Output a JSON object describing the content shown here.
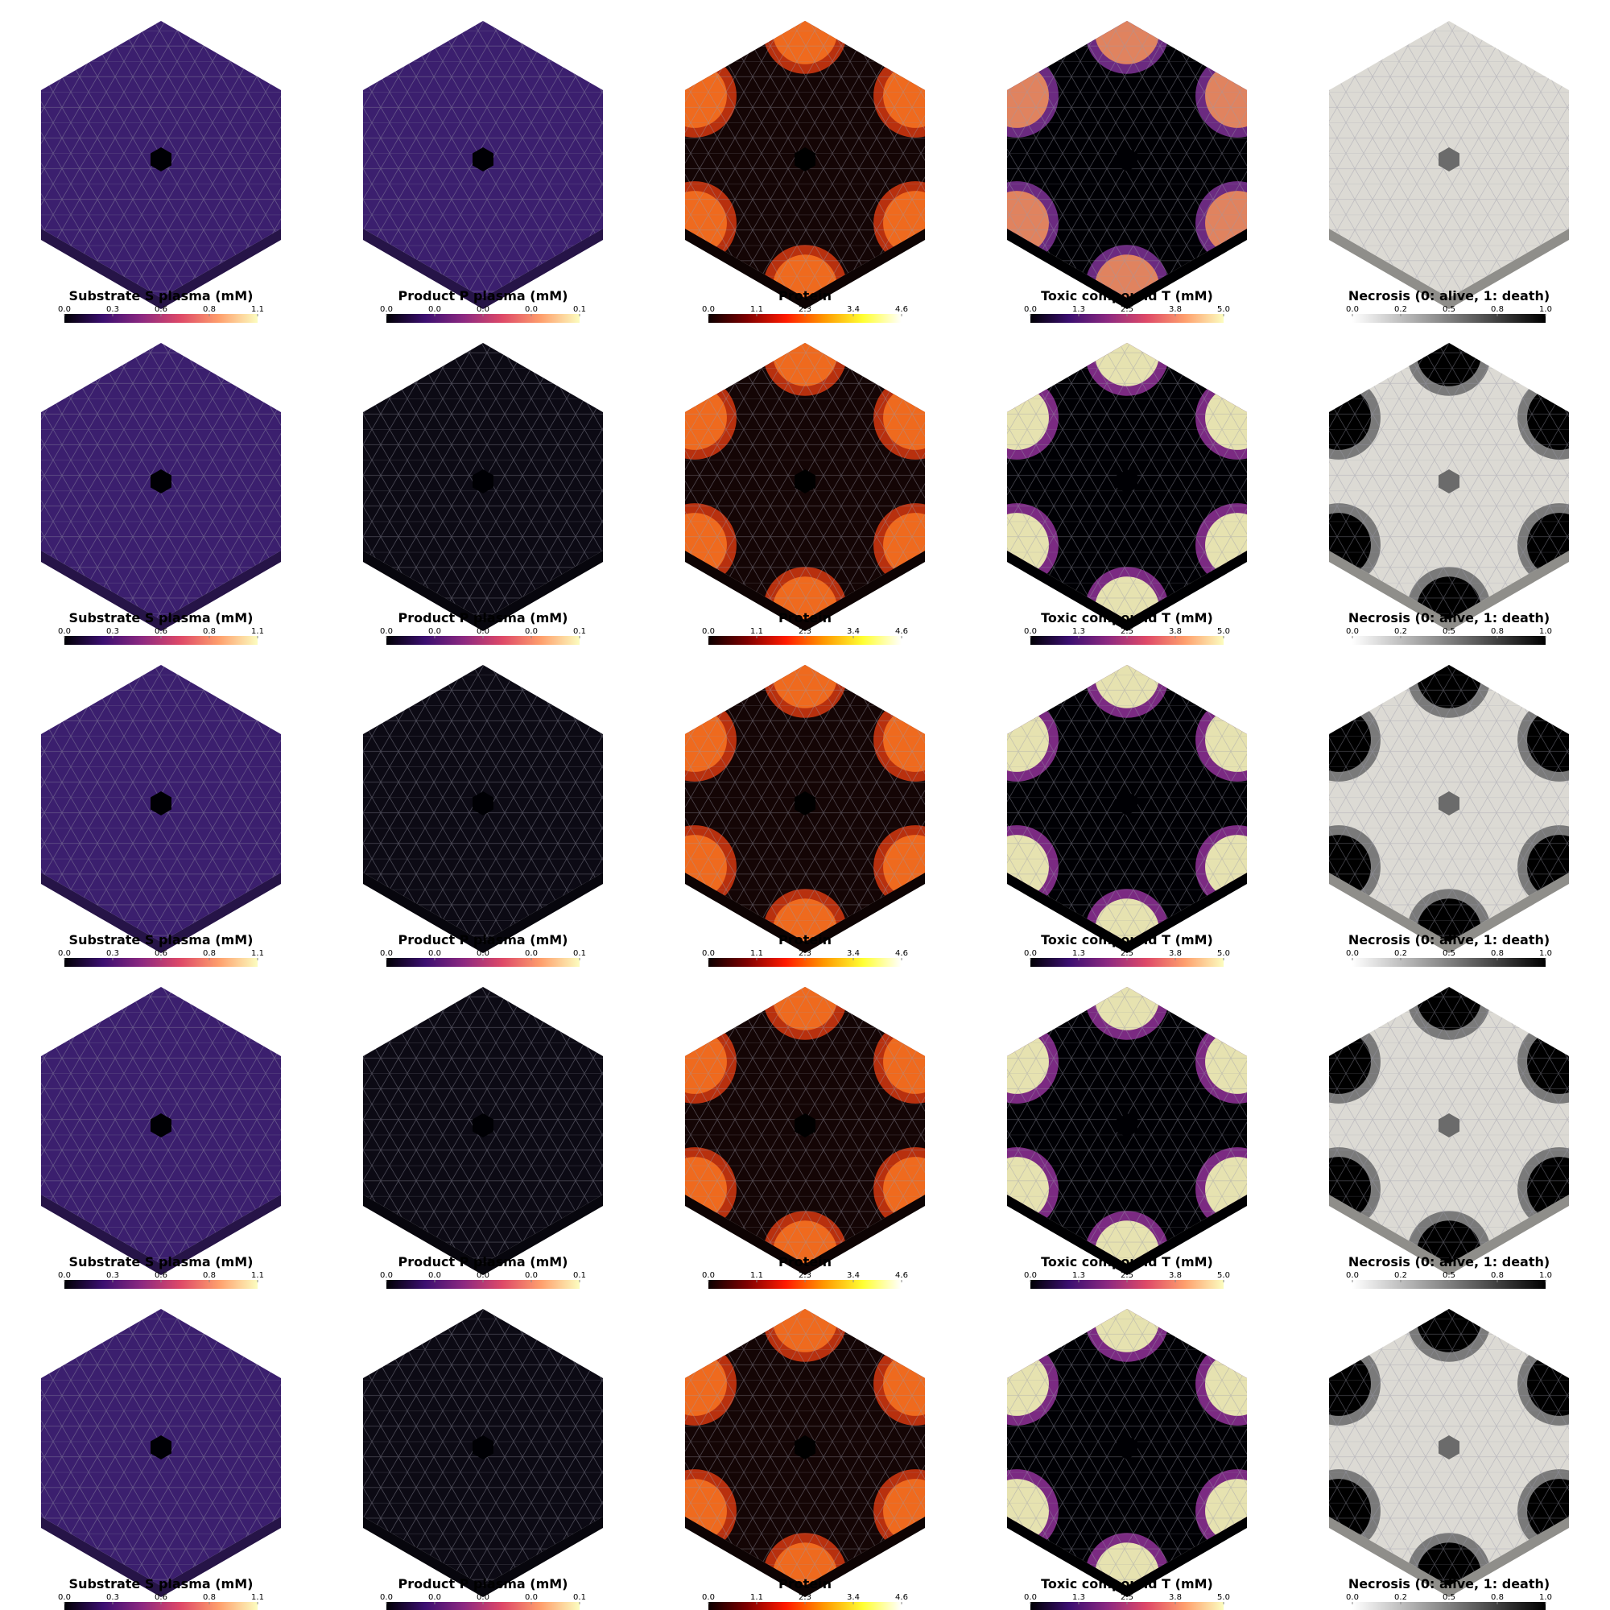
{
  "rows": [
    {
      "panels": [
        {
          "title": "Substrate S plasma (mM)",
          "lim": [
            0,
            1.1
          ],
          "ticks": [
            {
              "value": 0,
              "label": "0.0"
            },
            {
              "value": 0.275,
              "label": "0.3"
            },
            {
              "value": 0.55,
              "label": "0.6"
            },
            {
              "value": 0.825,
              "label": "0.8"
            },
            1.1
          ],
          "colors": [
            "#000004",
            "#3b0f70",
            "#8c2981",
            "#de4968",
            "#fe9f6d",
            "#fcfdbf"
          ],
          "fill": "#3b1f6e",
          "hole": "#000004",
          "spots": null
        },
        {
          "title": "Product P plasma (mM)",
          "lim": [
            0,
            0.06
          ],
          "ticks": [
            {
              "value": 0,
              "label": "0.0"
            },
            {
              "value": 0.015,
              "label": "0.0"
            },
            {
              "value": 0.03,
              "label": "0.0"
            },
            {
              "value": 0.045,
              "label": "0.0"
            },
            {
              "value": 0.06,
              "label": "0.1"
            }
          ],
          "colors": [
            "#000004",
            "#3b0f70",
            "#8c2981",
            "#de4968",
            "#fe9f6d",
            "#fcfdbf"
          ],
          "fill": "#3b1f6e",
          "hole": "#000004",
          "spots": null
        },
        {
          "title": "Protein",
          "lim": [
            0,
            4.6
          ],
          "ticks": [
            {
              "value": 0,
              "label": "0.0"
            },
            {
              "value": 1.15,
              "label": "1.1"
            },
            2.3,
            {
              "value": 3.45,
              "label": "3.4"
            },
            4.6
          ],
          "colors": [
            "#0b0000",
            "#7f0000",
            "#ff1a00",
            "#ff9900",
            "#ffff33",
            "#ffffff"
          ],
          "fill": "#140505",
          "hole": "#000000",
          "spots": [
            "#b8300e",
            "#ef6a1e"
          ]
        },
        {
          "title": "Toxic compound T (mM)",
          "lim": [
            0,
            5
          ],
          "ticks": [
            {
              "value": 0,
              "label": "0.0"
            },
            {
              "value": 1.25,
              "label": "1.3"
            },
            2.5,
            {
              "value": 3.75,
              "label": "3.8"
            },
            {
              "value": 5,
              "label": "5.0"
            }
          ],
          "colors": [
            "#000004",
            "#3b0f70",
            "#8c2981",
            "#de4968",
            "#fe9f6d",
            "#fcfdbf"
          ],
          "fill": "#000004",
          "hole": "#000004",
          "spots": [
            "#6b2a80",
            "#e0835f"
          ]
        },
        {
          "title": "Necrosis (0: alive, 1: death)",
          "lim": [
            0,
            1
          ],
          "ticks": [
            {
              "value": 0,
              "label": "0.0"
            },
            {
              "value": 0.25,
              "label": "0.2"
            },
            0.5,
            {
              "value": 0.75,
              "label": "0.8"
            },
            {
              "value": 1,
              "label": "1.0"
            }
          ],
          "colors": [
            "#ffffff",
            "#000000"
          ],
          "fill": "#dcdad4",
          "hole": "#6b6b6b",
          "spots": null
        }
      ]
    },
    {
      "panels": [
        {
          "title": "Substrate S plasma (mM)",
          "lim": [
            0,
            1.1
          ],
          "ticks": [
            {
              "value": 0,
              "label": "0.0"
            },
            {
              "value": 0.275,
              "label": "0.3"
            },
            {
              "value": 0.55,
              "label": "0.6"
            },
            {
              "value": 0.825,
              "label": "0.8"
            },
            1.1
          ],
          "colors": [
            "#000004",
            "#3b0f70",
            "#8c2981",
            "#de4968",
            "#fe9f6d",
            "#fcfdbf"
          ],
          "fill": "#3b1f6e",
          "hole": "#000004",
          "spots": null
        },
        {
          "title": "Product P plasma (mM)",
          "lim": [
            0,
            0.06
          ],
          "ticks": [
            {
              "value": 0,
              "label": "0.0"
            },
            {
              "value": 0.015,
              "label": "0.0"
            },
            {
              "value": 0.03,
              "label": "0.0"
            },
            {
              "value": 0.045,
              "label": "0.0"
            },
            {
              "value": 0.06,
              "label": "0.1"
            }
          ],
          "colors": [
            "#000004",
            "#3b0f70",
            "#8c2981",
            "#de4968",
            "#fe9f6d",
            "#fcfdbf"
          ],
          "fill": "#0c0a14",
          "hole": "#000004",
          "spots": null
        },
        {
          "title": "Protein",
          "lim": [
            0,
            4.6
          ],
          "ticks": [
            {
              "value": 0,
              "label": "0.0"
            },
            {
              "value": 1.15,
              "label": "1.1"
            },
            2.3,
            {
              "value": 3.45,
              "label": "3.4"
            },
            4.6
          ],
          "colors": [
            "#0b0000",
            "#7f0000",
            "#ff1a00",
            "#ff9900",
            "#ffff33",
            "#ffffff"
          ],
          "fill": "#140505",
          "hole": "#000000",
          "spots": [
            "#b8300e",
            "#ef6a1e"
          ]
        },
        {
          "title": "Toxic compound T (mM)",
          "lim": [
            0,
            5
          ],
          "ticks": [
            {
              "value": 0,
              "label": "0.0"
            },
            {
              "value": 1.25,
              "label": "1.3"
            },
            2.5,
            {
              "value": 3.75,
              "label": "3.8"
            },
            {
              "value": 5,
              "label": "5.0"
            }
          ],
          "colors": [
            "#000004",
            "#3b0f70",
            "#8c2981",
            "#de4968",
            "#fe9f6d",
            "#fcfdbf"
          ],
          "fill": "#000004",
          "hole": "#000004",
          "spots": [
            "#7b2a82",
            "#e6e2b0"
          ]
        },
        {
          "title": "Necrosis (0: alive, 1: death)",
          "lim": [
            0,
            1
          ],
          "ticks": [
            {
              "value": 0,
              "label": "0.0"
            },
            {
              "value": 0.25,
              "label": "0.2"
            },
            0.5,
            {
              "value": 0.75,
              "label": "0.8"
            },
            {
              "value": 1,
              "label": "1.0"
            }
          ],
          "colors": [
            "#ffffff",
            "#000000"
          ],
          "fill": "#dcdad4",
          "hole": "#6b6b6b",
          "spots": [
            "#7a7a7a",
            "#000000"
          ]
        }
      ]
    },
    {
      "panels": [
        {
          "title": "Substrate S plasma (mM)",
          "lim": [
            0,
            1.1
          ],
          "ticks": [
            {
              "value": 0,
              "label": "0.0"
            },
            {
              "value": 0.275,
              "label": "0.3"
            },
            {
              "value": 0.55,
              "label": "0.6"
            },
            {
              "value": 0.825,
              "label": "0.8"
            },
            1.1
          ],
          "colors": [
            "#000004",
            "#3b0f70",
            "#8c2981",
            "#de4968",
            "#fe9f6d",
            "#fcfdbf"
          ],
          "fill": "#3b1f6e",
          "hole": "#000004",
          "spots": null
        },
        {
          "title": "Product P plasma (mM)",
          "lim": [
            0,
            0.06
          ],
          "ticks": [
            {
              "value": 0,
              "label": "0.0"
            },
            {
              "value": 0.015,
              "label": "0.0"
            },
            {
              "value": 0.03,
              "label": "0.0"
            },
            {
              "value": 0.045,
              "label": "0.0"
            },
            {
              "value": 0.06,
              "label": "0.1"
            }
          ],
          "colors": [
            "#000004",
            "#3b0f70",
            "#8c2981",
            "#de4968",
            "#fe9f6d",
            "#fcfdbf"
          ],
          "fill": "#0c0a14",
          "hole": "#000004",
          "spots": null
        },
        {
          "title": "Protein",
          "lim": [
            0,
            4.6
          ],
          "ticks": [
            {
              "value": 0,
              "label": "0.0"
            },
            {
              "value": 1.15,
              "label": "1.1"
            },
            2.3,
            {
              "value": 3.45,
              "label": "3.4"
            },
            4.6
          ],
          "colors": [
            "#0b0000",
            "#7f0000",
            "#ff1a00",
            "#ff9900",
            "#ffff33",
            "#ffffff"
          ],
          "fill": "#140505",
          "hole": "#000000",
          "spots": [
            "#b8300e",
            "#ef6a1e"
          ]
        },
        {
          "title": "Toxic compound T (mM)",
          "lim": [
            0,
            5
          ],
          "ticks": [
            {
              "value": 0,
              "label": "0.0"
            },
            {
              "value": 1.25,
              "label": "1.3"
            },
            2.5,
            {
              "value": 3.75,
              "label": "3.8"
            },
            {
              "value": 5,
              "label": "5.0"
            }
          ],
          "colors": [
            "#000004",
            "#3b0f70",
            "#8c2981",
            "#de4968",
            "#fe9f6d",
            "#fcfdbf"
          ],
          "fill": "#000004",
          "hole": "#000004",
          "spots": [
            "#7b2a82",
            "#e6e2b0"
          ]
        },
        {
          "title": "Necrosis (0: alive, 1: death)",
          "lim": [
            0,
            1
          ],
          "ticks": [
            {
              "value": 0,
              "label": "0.0"
            },
            {
              "value": 0.25,
              "label": "0.2"
            },
            0.5,
            {
              "value": 0.75,
              "label": "0.8"
            },
            {
              "value": 1,
              "label": "1.0"
            }
          ],
          "colors": [
            "#ffffff",
            "#000000"
          ],
          "fill": "#dcdad4",
          "hole": "#6b6b6b",
          "spots": [
            "#7a7a7a",
            "#000000"
          ]
        }
      ]
    },
    {
      "panels": [
        {
          "title": "Substrate S plasma (mM)",
          "lim": [
            0,
            1.1
          ],
          "ticks": [
            {
              "value": 0,
              "label": "0.0"
            },
            {
              "value": 0.275,
              "label": "0.3"
            },
            {
              "value": 0.55,
              "label": "0.6"
            },
            {
              "value": 0.825,
              "label": "0.8"
            },
            1.1
          ],
          "colors": [
            "#000004",
            "#3b0f70",
            "#8c2981",
            "#de4968",
            "#fe9f6d",
            "#fcfdbf"
          ],
          "fill": "#3b1f6e",
          "hole": "#000004",
          "spots": null
        },
        {
          "title": "Product P plasma (mM)",
          "lim": [
            0,
            0.06
          ],
          "ticks": [
            {
              "value": 0,
              "label": "0.0"
            },
            {
              "value": 0.015,
              "label": "0.0"
            },
            {
              "value": 0.03,
              "label": "0.0"
            },
            {
              "value": 0.045,
              "label": "0.0"
            },
            {
              "value": 0.06,
              "label": "0.1"
            }
          ],
          "colors": [
            "#000004",
            "#3b0f70",
            "#8c2981",
            "#de4968",
            "#fe9f6d",
            "#fcfdbf"
          ],
          "fill": "#0c0a14",
          "hole": "#000004",
          "spots": null
        },
        {
          "title": "Protein",
          "lim": [
            0,
            4.6
          ],
          "ticks": [
            {
              "value": 0,
              "label": "0.0"
            },
            {
              "value": 1.15,
              "label": "1.1"
            },
            2.3,
            {
              "value": 3.45,
              "label": "3.4"
            },
            4.6
          ],
          "colors": [
            "#0b0000",
            "#7f0000",
            "#ff1a00",
            "#ff9900",
            "#ffff33",
            "#ffffff"
          ],
          "fill": "#140505",
          "hole": "#000000",
          "spots": [
            "#b8300e",
            "#ef6a1e"
          ]
        },
        {
          "title": "Toxic compound T (mM)",
          "lim": [
            0,
            5
          ],
          "ticks": [
            {
              "value": 0,
              "label": "0.0"
            },
            {
              "value": 1.25,
              "label": "1.3"
            },
            2.5,
            {
              "value": 3.75,
              "label": "3.8"
            },
            {
              "value": 5,
              "label": "5.0"
            }
          ],
          "colors": [
            "#000004",
            "#3b0f70",
            "#8c2981",
            "#de4968",
            "#fe9f6d",
            "#fcfdbf"
          ],
          "fill": "#000004",
          "hole": "#000004",
          "spots": [
            "#7b2a82",
            "#e6e2b0"
          ]
        },
        {
          "title": "Necrosis (0: alive, 1: death)",
          "lim": [
            0,
            1
          ],
          "ticks": [
            {
              "value": 0,
              "label": "0.0"
            },
            {
              "value": 0.25,
              "label": "0.2"
            },
            0.5,
            {
              "value": 0.75,
              "label": "0.8"
            },
            {
              "value": 1,
              "label": "1.0"
            }
          ],
          "colors": [
            "#ffffff",
            "#000000"
          ],
          "fill": "#dcdad4",
          "hole": "#6b6b6b",
          "spots": [
            "#7a7a7a",
            "#000000"
          ]
        }
      ]
    },
    {
      "panels": [
        {
          "title": "Substrate S plasma (mM)",
          "lim": [
            0,
            1.1
          ],
          "ticks": [
            {
              "value": 0,
              "label": "0.0"
            },
            {
              "value": 0.275,
              "label": "0.3"
            },
            {
              "value": 0.55,
              "label": "0.6"
            },
            {
              "value": 0.825,
              "label": "0.8"
            },
            1.1
          ],
          "colors": [
            "#000004",
            "#3b0f70",
            "#8c2981",
            "#de4968",
            "#fe9f6d",
            "#fcfdbf"
          ],
          "fill": "#3b1f6e",
          "hole": "#000004",
          "spots": null
        },
        {
          "title": "Product P plasma (mM)",
          "lim": [
            0,
            0.06
          ],
          "ticks": [
            {
              "value": 0,
              "label": "0.0"
            },
            {
              "value": 0.015,
              "label": "0.0"
            },
            {
              "value": 0.03,
              "label": "0.0"
            },
            {
              "value": 0.045,
              "label": "0.0"
            },
            {
              "value": 0.06,
              "label": "0.1"
            }
          ],
          "colors": [
            "#000004",
            "#3b0f70",
            "#8c2981",
            "#de4968",
            "#fe9f6d",
            "#fcfdbf"
          ],
          "fill": "#0c0a14",
          "hole": "#000004",
          "spots": null
        },
        {
          "title": "Protein",
          "lim": [
            0,
            4.6
          ],
          "ticks": [
            {
              "value": 0,
              "label": "0.0"
            },
            {
              "value": 1.15,
              "label": "1.1"
            },
            2.3,
            {
              "value": 3.45,
              "label": "3.4"
            },
            4.6
          ],
          "colors": [
            "#0b0000",
            "#7f0000",
            "#ff1a00",
            "#ff9900",
            "#ffff33",
            "#ffffff"
          ],
          "fill": "#140505",
          "hole": "#000000",
          "spots": [
            "#b8300e",
            "#ef6a1e"
          ]
        },
        {
          "title": "Toxic compound T (mM)",
          "lim": [
            0,
            5
          ],
          "ticks": [
            {
              "value": 0,
              "label": "0.0"
            },
            {
              "value": 1.25,
              "label": "1.3"
            },
            2.5,
            {
              "value": 3.75,
              "label": "3.8"
            },
            {
              "value": 5,
              "label": "5.0"
            }
          ],
          "colors": [
            "#000004",
            "#3b0f70",
            "#8c2981",
            "#de4968",
            "#fe9f6d",
            "#fcfdbf"
          ],
          "fill": "#000004",
          "hole": "#000004",
          "spots": [
            "#7b2a82",
            "#e6e2b0"
          ]
        },
        {
          "title": "Necrosis (0: alive, 1: death)",
          "lim": [
            0,
            1
          ],
          "ticks": [
            {
              "value": 0,
              "label": "0.0"
            },
            {
              "value": 0.25,
              "label": "0.2"
            },
            0.5,
            {
              "value": 0.75,
              "label": "0.8"
            },
            {
              "value": 1,
              "label": "1.0"
            }
          ],
          "colors": [
            "#ffffff",
            "#000000"
          ],
          "fill": "#dcdad4",
          "hole": "#6b6b6b",
          "spots": [
            "#7a7a7a",
            "#000000"
          ]
        }
      ]
    }
  ]
}
